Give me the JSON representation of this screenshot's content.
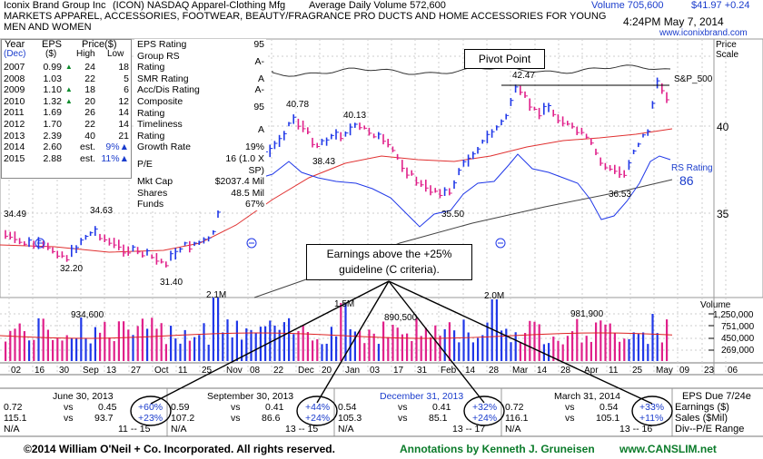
{
  "header": {
    "company": "Iconix Brand Group Inc",
    "ticker_exchange": "(ICON) NASDAQ Apparel-Clothing Mfg",
    "avg_volume": "Average Daily Volume 572,600",
    "volume": "Volume 705,600",
    "price_change": "$41.97 +0.24",
    "description_line1": "MARKETS APPAREL, ACCESSORIES, FOOTWEAR, BEAUTY/FRAGRANCE PRO DUCTS AND HOME ACCESSORIES FOR YOUNG",
    "description_line2": "MEN AND WOMEN",
    "datetime": "4:24PM May 7, 2014",
    "website": "www.iconixbrand.com"
  },
  "eps_table": {
    "col_year": "Year",
    "col_year_sub": "(Dec)",
    "col_eps": "EPS",
    "col_eps_sub": "($)",
    "col_price": "Price($)",
    "col_high": "High",
    "col_low": "Low",
    "rows": [
      {
        "year": "2007",
        "eps": "0.99",
        "tri": "▲",
        "high": "24",
        "low": "18"
      },
      {
        "year": "2008",
        "eps": "1.03",
        "tri": "",
        "high": "22",
        "low": "5"
      },
      {
        "year": "2009",
        "eps": "1.10",
        "tri": "▲",
        "high": "18",
        "low": "6"
      },
      {
        "year": "2010",
        "eps": "1.32",
        "tri": "▲",
        "high": "20",
        "low": "12"
      },
      {
        "year": "2011",
        "eps": "1.69",
        "tri": "",
        "high": "26",
        "low": "14"
      },
      {
        "year": "2012",
        "eps": "1.70",
        "tri": "",
        "high": "22",
        "low": "14"
      },
      {
        "year": "2013",
        "eps": "2.39",
        "tri": "",
        "high": "40",
        "low": "21"
      },
      {
        "year": "2014",
        "eps": "2.60",
        "tri": "",
        "high": "est.",
        "low": "9%▲"
      },
      {
        "year": "2015",
        "eps": "2.88",
        "tri": "",
        "high": "est.",
        "low": "11%▲"
      }
    ]
  },
  "ratings": [
    {
      "label": "EPS Rating",
      "value": "95"
    },
    {
      "label": "Group RS Rating",
      "value": "A-"
    },
    {
      "label": "SMR Rating",
      "value": "A"
    },
    {
      "label": "Acc/Dis Rating",
      "value": "A-"
    },
    {
      "label": "Composite Rating",
      "value": "95"
    },
    {
      "label": "Timeliness Rating",
      "value": "A"
    },
    {
      "label": "Growth Rate",
      "value": "19%"
    },
    {
      "label": "P/E",
      "value": "16 (1.0 X SP)"
    },
    {
      "label": "Mkt Cap",
      "value": "$2037.4 Mil"
    },
    {
      "label": "Shares",
      "value": "48.5 Mil"
    },
    {
      "label": "Funds",
      "value": "67%"
    }
  ],
  "annotations": {
    "pivot_point": "Pivot Point",
    "earnings_line1": "Earnings above the +25%",
    "earnings_line2": "guideline (C criteria)."
  },
  "price_scale": {
    "title": "Price",
    "subtitle": "Scale"
  },
  "rs_rating": {
    "label": "RS Rating",
    "value": "86"
  },
  "sp500_label": "S&P_500",
  "volume_title": "Volume",
  "chart_data": {
    "type": "line",
    "y_axis": {
      "scale": "log",
      "ticks": [
        35,
        40
      ],
      "tick_labels": [
        "35",
        "40"
      ]
    },
    "price_annotations": [
      {
        "label": "34.49",
        "x_index": 0
      },
      {
        "label": "32.20",
        "x_index": 14
      },
      {
        "label": "34.63",
        "x_index": 22
      },
      {
        "label": "31.40",
        "x_index": 44
      },
      {
        "label": "40.78",
        "x_index": 74
      },
      {
        "label": "38.43",
        "x_index": 80
      },
      {
        "label": "40.13",
        "x_index": 93
      },
      {
        "label": "35.50",
        "x_index": 122
      },
      {
        "label": "42.47",
        "x_index": 135
      },
      {
        "label": "36.53",
        "x_index": 162
      }
    ],
    "volume_annotations": [
      {
        "label": "934,600",
        "x_index": 22
      },
      {
        "label": "2.1M",
        "x_index": 57
      },
      {
        "label": "1.5M",
        "x_index": 91
      },
      {
        "label": "890,500",
        "x_index": 108
      },
      {
        "label": "2.0M",
        "x_index": 130
      },
      {
        "label": "981,900",
        "x_index": 160
      }
    ],
    "volume_axis": {
      "ticks": [
        "1,250,000",
        "751,000",
        "450,000",
        "269,000"
      ]
    },
    "x_axis_labels": [
      "02",
      "16",
      "30",
      "Sep",
      "13",
      "27",
      "Oct",
      "11",
      "25",
      "Nov",
      "08",
      "22",
      "Dec",
      "20",
      "Jan",
      "03",
      "17",
      "31",
      "Feb",
      "14",
      "28",
      "Mar",
      "14",
      "28",
      "Apr",
      "11",
      "25",
      "May",
      "09",
      "23",
      "06"
    ],
    "legend": []
  },
  "quarters": [
    {
      "period": "June 30, 2013",
      "eps_cur": "0.72",
      "vs": "vs",
      "eps_prev": "0.45",
      "eps_chg": "+60%",
      "sales_cur": "115.1",
      "sales_prev": "93.7",
      "sales_chg": "+23%",
      "na": "N/A",
      "pe_range": "11 -- 15"
    },
    {
      "period": "September 30, 2013",
      "eps_cur": "0.59",
      "vs": "vs",
      "eps_prev": "0.41",
      "eps_chg": "+44%",
      "sales_cur": "107.2",
      "sales_prev": "86.6",
      "sales_chg": "+24%",
      "na": "N/A",
      "pe_range": "13 -- 15"
    },
    {
      "period": "December 31, 2013",
      "eps_cur": "0.54",
      "vs": "vs",
      "eps_prev": "0.41",
      "eps_chg": "+32%",
      "sales_cur": "105.3",
      "sales_prev": "85.1",
      "sales_chg": "+24%",
      "na": "N/A",
      "pe_range": "13 -- 17"
    },
    {
      "period": "March 31, 2014",
      "eps_cur": "0.72",
      "vs": "vs",
      "eps_prev": "0.54",
      "eps_chg": "+33%",
      "sales_cur": "116.1",
      "sales_prev": "105.1",
      "sales_chg": "+11%",
      "na": "N/A",
      "pe_range": "13 -- 16"
    }
  ],
  "quarter_legend": {
    "title": "EPS Due 7/24e",
    "row1": "Earnings ($)",
    "row2": "Sales ($Mil)",
    "row3": "Div--P/E Range"
  },
  "footer": {
    "copyright": "©2014 William O'Neil + Co. Incorporated. All rights reserved.",
    "annotations_credit": "Annotations by Kenneth J. Gruneisen",
    "site": "www.CANSLIM.net"
  }
}
